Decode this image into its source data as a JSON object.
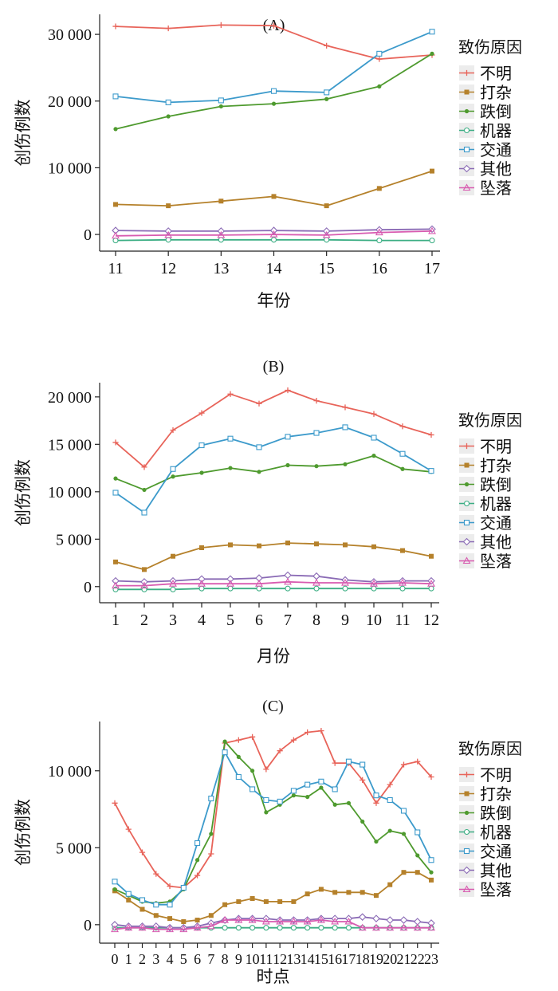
{
  "legend": {
    "title": "致伤原因",
    "colors": [
      "#E8645A",
      "#B5812B",
      "#4E9A2E",
      "#3CAE84",
      "#3C9ACB",
      "#8A6AB5",
      "#D85BB0"
    ],
    "markers": [
      "plus",
      "square",
      "dot",
      "circle",
      "square-open",
      "diamond",
      "triangle"
    ]
  },
  "chart_data": [
    {
      "type": "line",
      "title": "(A)",
      "xlabel": "年份",
      "ylabel": "创伤例数",
      "x": [
        "11",
        "12",
        "13",
        "14",
        "15",
        "16",
        "17"
      ],
      "ylim": [
        -2500,
        33000
      ],
      "yticks": [
        0,
        10000,
        20000,
        30000
      ],
      "ytick_labels": [
        "0",
        "10 000",
        "20 000",
        "30 000"
      ],
      "series": [
        {
          "name": "不明",
          "values": [
            31200,
            30900,
            31400,
            31300,
            28300,
            26300,
            26900
          ]
        },
        {
          "name": "打杂",
          "values": [
            4500,
            4300,
            5000,
            5700,
            4300,
            6900,
            9500
          ]
        },
        {
          "name": "跌倒",
          "values": [
            15800,
            17700,
            19200,
            19600,
            20300,
            22200,
            27100
          ]
        },
        {
          "name": "机器",
          "values": [
            -900,
            -800,
            -800,
            -800,
            -800,
            -900,
            -900
          ]
        },
        {
          "name": "交通",
          "values": [
            20700,
            19800,
            20100,
            21500,
            21300,
            27100,
            30400
          ]
        },
        {
          "name": "其他",
          "values": [
            600,
            500,
            500,
            600,
            500,
            700,
            800
          ]
        },
        {
          "name": "坠落",
          "values": [
            -200,
            -100,
            -100,
            0,
            -100,
            300,
            500
          ]
        }
      ]
    },
    {
      "type": "line",
      "title": "(B)",
      "xlabel": "月份",
      "ylabel": "创伤例数",
      "x": [
        "1",
        "2",
        "3",
        "4",
        "5",
        "6",
        "7",
        "8",
        "9",
        "10",
        "11",
        "12"
      ],
      "ylim": [
        -1700,
        21500
      ],
      "yticks": [
        0,
        5000,
        10000,
        15000,
        20000
      ],
      "ytick_labels": [
        "0",
        "5 000",
        "10 000",
        "15 000",
        "20 000"
      ],
      "series": [
        {
          "name": "不明",
          "values": [
            15200,
            12600,
            16500,
            18300,
            20300,
            19300,
            20700,
            19600,
            18900,
            18200,
            16900,
            16000
          ]
        },
        {
          "name": "打杂",
          "values": [
            2600,
            1800,
            3200,
            4100,
            4400,
            4300,
            4600,
            4500,
            4400,
            4200,
            3800,
            3200
          ]
        },
        {
          "name": "跌倒",
          "values": [
            11400,
            10200,
            11600,
            12000,
            12500,
            12100,
            12800,
            12700,
            12900,
            13800,
            12400,
            12100
          ]
        },
        {
          "name": "机器",
          "values": [
            -300,
            -300,
            -300,
            -200,
            -200,
            -200,
            -200,
            -200,
            -200,
            -200,
            -200,
            -200
          ]
        },
        {
          "name": "交通",
          "values": [
            9900,
            7800,
            12400,
            14900,
            15600,
            14700,
            15800,
            16200,
            16800,
            15700,
            14000,
            12200
          ]
        },
        {
          "name": "其他",
          "values": [
            600,
            500,
            600,
            800,
            800,
            900,
            1200,
            1100,
            700,
            500,
            600,
            600
          ]
        },
        {
          "name": "坠落",
          "values": [
            100,
            100,
            300,
            300,
            300,
            300,
            500,
            400,
            400,
            300,
            400,
            300
          ]
        }
      ]
    },
    {
      "type": "line",
      "title": "(C)",
      "xlabel": "时点",
      "ylabel": "创伤例数",
      "x": [
        "0",
        "1",
        "2",
        "3",
        "4",
        "5",
        "6",
        "7",
        "8",
        "9",
        "10",
        "11",
        "12",
        "13",
        "14",
        "15",
        "16",
        "17",
        "18",
        "19",
        "20",
        "21",
        "22",
        "23"
      ],
      "ylim": [
        -1200,
        13200
      ],
      "yticks": [
        0,
        5000,
        10000
      ],
      "ytick_labels": [
        "0",
        "5 000",
        "10 000"
      ],
      "series": [
        {
          "name": "不明",
          "values": [
            7900,
            6200,
            4700,
            3300,
            2500,
            2400,
            3200,
            4600,
            11800,
            12000,
            12200,
            10100,
            11300,
            12000,
            12500,
            12600,
            10500,
            10500,
            9400,
            7900,
            9100,
            10400,
            10600,
            9600
          ]
        },
        {
          "name": "打杂",
          "values": [
            2200,
            1600,
            1000,
            600,
            400,
            200,
            300,
            600,
            1300,
            1500,
            1700,
            1500,
            1500,
            1500,
            2000,
            2300,
            2100,
            2100,
            2100,
            1900,
            2600,
            3400,
            3400,
            2900
          ]
        },
        {
          "name": "跌倒",
          "values": [
            2300,
            1900,
            1500,
            1400,
            1500,
            2300,
            4200,
            5900,
            11900,
            10900,
            10000,
            7300,
            7800,
            8400,
            8300,
            8900,
            7800,
            7900,
            6700,
            5400,
            6100,
            5900,
            4500,
            3400
          ]
        },
        {
          "name": "机器",
          "values": [
            -200,
            -200,
            -200,
            -200,
            -200,
            -200,
            -200,
            -200,
            -200,
            -200,
            -200,
            -200,
            -200,
            -200,
            -200,
            -200,
            -200,
            -200,
            -200,
            -200,
            -200,
            -200,
            -200,
            -200
          ]
        },
        {
          "name": "交通",
          "values": [
            2800,
            2000,
            1600,
            1300,
            1300,
            2400,
            5300,
            8200,
            11200,
            9600,
            8800,
            8100,
            8000,
            8700,
            9100,
            9300,
            8800,
            10600,
            10400,
            8400,
            8100,
            7400,
            6000,
            4200
          ]
        },
        {
          "name": "其他",
          "values": [
            0,
            -100,
            -100,
            -100,
            -200,
            -200,
            -100,
            100,
            300,
            400,
            400,
            400,
            300,
            300,
            300,
            400,
            400,
            400,
            500,
            400,
            300,
            300,
            200,
            100
          ]
        },
        {
          "name": "坠落",
          "values": [
            -300,
            -200,
            -200,
            -300,
            -300,
            -300,
            -200,
            -100,
            300,
            300,
            300,
            200,
            200,
            200,
            200,
            300,
            200,
            200,
            -200,
            -200,
            -200,
            -200,
            -200,
            -200
          ]
        }
      ]
    }
  ]
}
